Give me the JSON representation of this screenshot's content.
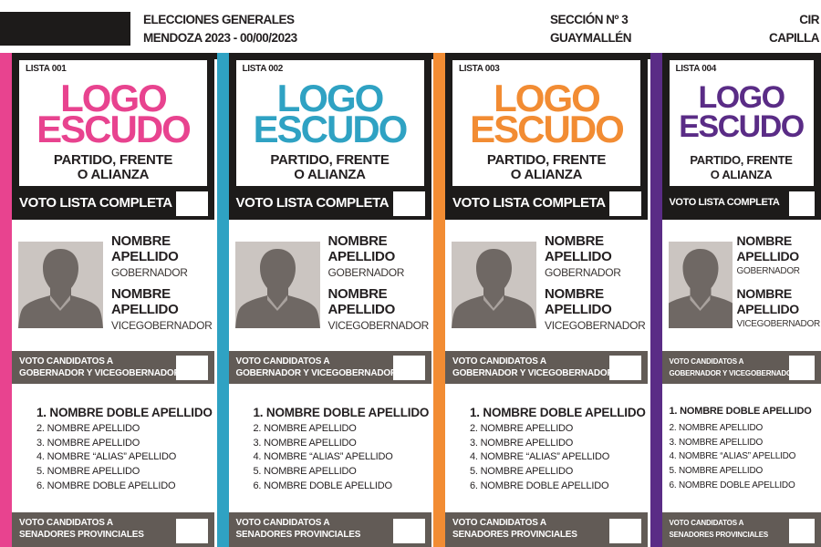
{
  "header": {
    "title_line1": "ELECCIONES GENERALES",
    "title_line2": "MENDOZA 2023 - 00/00/2023",
    "section_line1": "SECCIÓN Nº 3",
    "section_line2": "GUAYMALLÉN",
    "circuit_line1": "CIR",
    "circuit_line2": "CAPILLA"
  },
  "ballots": [
    {
      "list_label": "LISTA 001",
      "color": "#e8438f"
    },
    {
      "list_label": "LISTA 002",
      "color": "#2fa2c3"
    },
    {
      "list_label": "LISTA 003",
      "color": "#f28c33"
    },
    {
      "list_label": "LISTA 004",
      "color": "#5a2c86"
    }
  ],
  "common": {
    "logo_line1": "LOGO",
    "logo_line2": "ESCUDO",
    "party_line1": "PARTIDO, FRENTE",
    "party_line2": "O ALIANZA",
    "vote_full_list": "VOTO LISTA COMPLETA",
    "governor_name": "NOMBRE",
    "governor_surname": "APELLIDO",
    "governor_role": "GOBERNADOR",
    "vice_name": "NOMBRE",
    "vice_surname": "APELLIDO",
    "vice_role": "VICEGOBERNADOR",
    "vote_governor_line1": "VOTO CANDIDATOS A",
    "vote_governor_line2": "GOBERNADOR Y VICEGOBERNADOR",
    "senators": [
      "1. NOMBRE DOBLE APELLIDO",
      "2. NOMBRE APELLIDO",
      "3. NOMBRE APELLIDO",
      "4. NOMBRE “ALIAS” APELLIDO",
      "5. NOMBRE APELLIDO",
      "6. NOMBRE DOBLE APELLIDO"
    ],
    "vote_senators_line1": "VOTO CANDIDATOS A",
    "vote_senators_line2": "SENADORES PROVINCIALES"
  }
}
